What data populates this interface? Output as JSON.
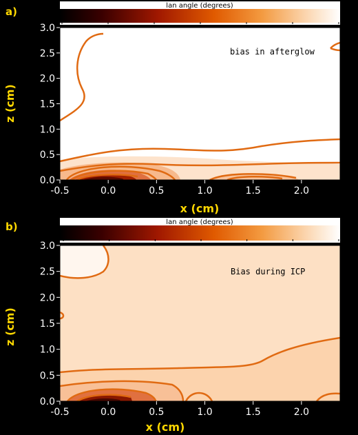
{
  "chart_data": [
    {
      "panel_label": "a)",
      "type": "contour",
      "colorbar": {
        "title": "lan angle (degrees)",
        "ticks": [
          "-3.000",
          "-2.500",
          "-2.000",
          "-1.500",
          "-1.000",
          "-0.500",
          "0.000"
        ],
        "range": [
          -3.0,
          0.0
        ]
      },
      "xlabel": "x (cm)",
      "ylabel": "z (cm)",
      "xlim": [
        -0.5,
        2.4
      ],
      "ylim": [
        0.0,
        3.0
      ],
      "xticks": [
        "-0.5",
        "0.0",
        "0.5",
        "1.0",
        "1.5",
        "2.0"
      ],
      "yticks": [
        "0.0",
        "0.5",
        "1.0",
        "1.5",
        "2.0",
        "2.5",
        "3.0"
      ],
      "annotation": "bias in afterglow",
      "colors": {
        "background": "#ffffff",
        "light": "#fde3cc",
        "dark": "#5a0a00",
        "contour_line": "#e06a12"
      }
    },
    {
      "panel_label": "b)",
      "type": "contour",
      "colorbar": {
        "title": "lan angle (degrees)",
        "ticks": [
          "-3.000",
          "-2.500",
          "-2.000",
          "-1.500",
          "-1.000",
          "-0.500",
          "0.000"
        ],
        "range": [
          -3.0,
          0.0
        ]
      },
      "xlabel": "x (cm)",
      "ylabel": "z (cm)",
      "xlim": [
        -0.5,
        2.4
      ],
      "ylim": [
        0.0,
        3.0
      ],
      "xticks": [
        "-0.5",
        "0.0",
        "0.5",
        "1.0",
        "1.5",
        "2.0"
      ],
      "yticks": [
        "0.0",
        "0.5",
        "1.0",
        "1.5",
        "2.0",
        "2.5",
        "3.0"
      ],
      "annotation": "Bias during ICP",
      "colors": {
        "background": "#fde0c4",
        "light": "#fcd3ad",
        "dark": "#5a0a00",
        "contour_line": "#e06a12"
      }
    }
  ]
}
